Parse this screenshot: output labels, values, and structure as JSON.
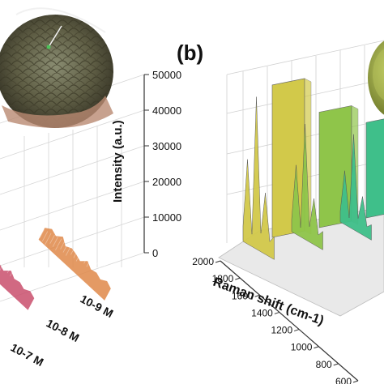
{
  "panel_label": "(b)",
  "chart_data": [
    {
      "type": "area",
      "panel": "a",
      "zlabel": "Intensity (a.u.)",
      "zlim": [
        0,
        50000
      ],
      "z_ticks": [
        "0",
        "10000",
        "20000",
        "30000",
        "40000",
        "50000"
      ],
      "concentration_labels": [
        "10-9 M",
        "10-8 M",
        "10-7 M"
      ],
      "inset": "fish-skin-photo",
      "series": [
        {
          "label": "10-9 M",
          "color": "#e0894a",
          "values": [
            2600,
            3400,
            2900,
            3800,
            2700,
            3300,
            3000,
            2500,
            3600,
            2800,
            3100,
            2600,
            3300,
            2700
          ]
        },
        {
          "label": "10-8 M",
          "color": "#c94f6d",
          "values": [
            2200,
            3000,
            2500,
            3400,
            2300,
            2900,
            2600,
            2100,
            3200,
            2400,
            2700,
            2200,
            2800,
            2300
          ]
        },
        {
          "label": "10-7 M",
          "color": "#8b3fa0",
          "values": [
            1800,
            2600,
            2100,
            3000,
            1900,
            2500,
            2200,
            1700,
            2800,
            2000,
            2300,
            1800,
            2400,
            1900
          ]
        }
      ]
    },
    {
      "type": "area",
      "panel": "b",
      "xlabel": "Raman shift (cm-1)",
      "x_ticks": [
        "2000",
        "1800",
        "1600",
        "1400",
        "1200",
        "1000",
        "800",
        "600"
      ],
      "inset": "green-sample-photo",
      "series": [
        {
          "color": "#d2c94a",
          "values": [
            0.1,
            0.55,
            0.08,
            0.99,
            0.12,
            0.4,
            0.1,
            0.15
          ]
        },
        {
          "color": "#8fc54a",
          "values": [
            0.08,
            0.45,
            0.06,
            0.75,
            0.1,
            0.3,
            0.08,
            0.12
          ]
        },
        {
          "color": "#3fbf8a",
          "values": [
            0.07,
            0.35,
            0.06,
            0.62,
            0.09,
            0.25,
            0.07,
            0.1
          ]
        }
      ]
    }
  ]
}
